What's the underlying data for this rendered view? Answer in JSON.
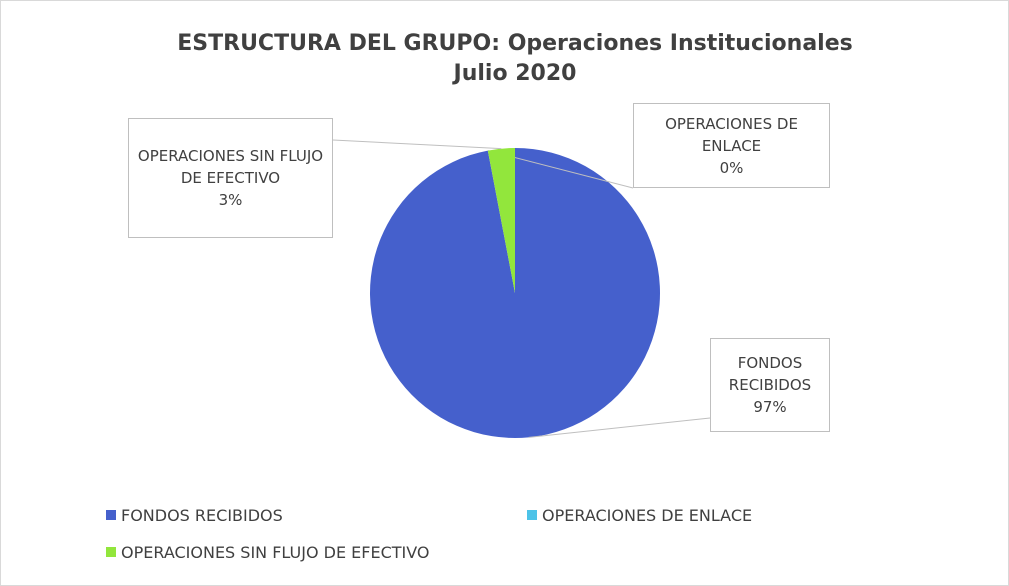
{
  "chart_data": {
    "type": "pie",
    "title": "ESTRUCTURA DEL GRUPO: Operaciones Institucionales",
    "subtitle": "Julio 2020",
    "categories": [
      "FONDOS RECIBIDOS",
      "OPERACIONES DE ENLACE",
      "OPERACIONES SIN FLUJO DE EFECTIVO"
    ],
    "values": [
      97,
      0,
      3
    ],
    "value_labels": [
      "97%",
      "0%",
      "3%"
    ],
    "colors": [
      "#4560cc",
      "#4dc3e8",
      "#92e63c"
    ],
    "legend": "bottom"
  }
}
